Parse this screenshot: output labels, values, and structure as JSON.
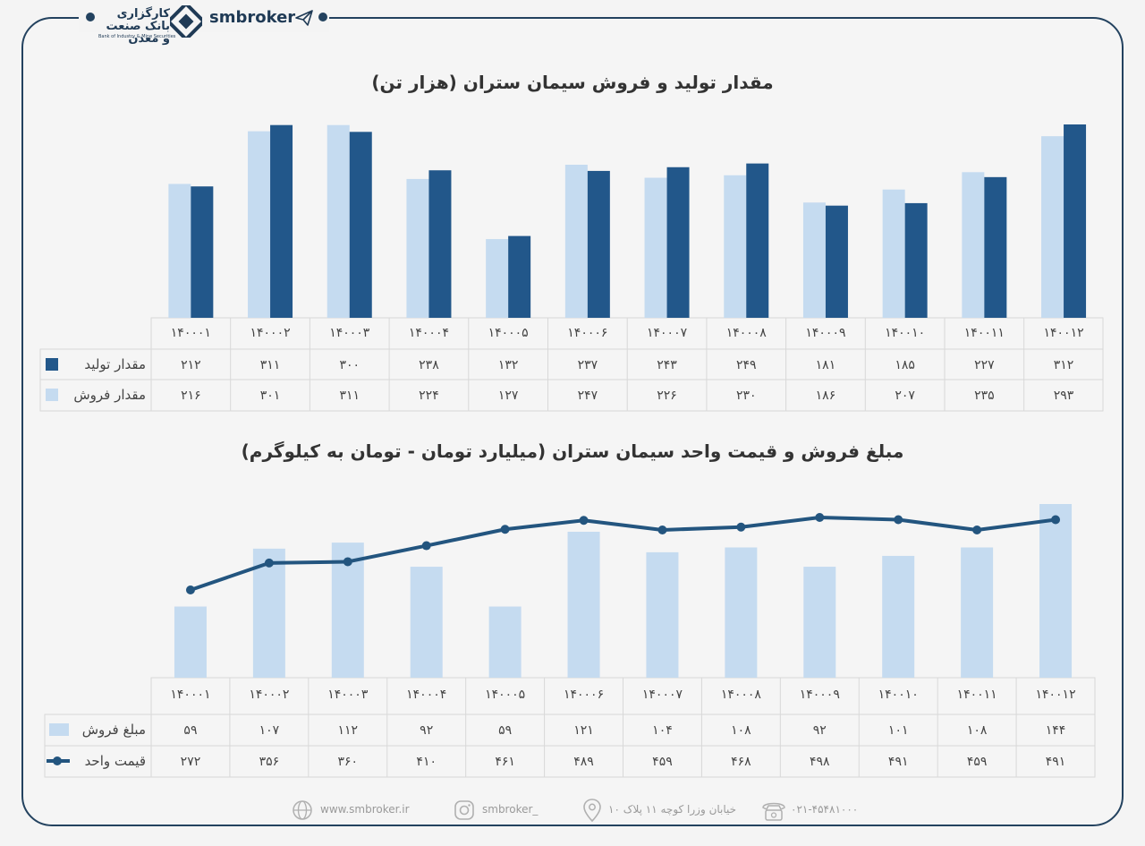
{
  "brand": {
    "name": "smbroker",
    "logo_text": "کارگزاری بانک صنعت و معدن",
    "logo_sub": "Bank of Industry & Mine Securities"
  },
  "footer": {
    "website": "www.smbroker.ir",
    "instagram": "smbroker_",
    "address": "خیابان وزرا کوچه ۱۱ پلاک ۱۰",
    "phone": "۰۲۱-۴۵۴۸۱۰۰۰"
  },
  "chart_data": [
    {
      "type": "bar",
      "title": "مقدار تولید و فروش سیمان ستران (هزار تن)",
      "categories": [
        "۱۴۰۰۰۱",
        "۱۴۰۰۰۲",
        "۱۴۰۰۰۳",
        "۱۴۰۰۰۴",
        "۱۴۰۰۰۵",
        "۱۴۰۰۰۶",
        "۱۴۰۰۰۷",
        "۱۴۰۰۰۸",
        "۱۴۰۰۰۹",
        "۱۴۰۰۱۰",
        "۱۴۰۰۱۱",
        "۱۴۰۰۱۲"
      ],
      "series": [
        {
          "name": "مقدار تولید",
          "color": "#22578a",
          "values": [
            212,
            311,
            300,
            238,
            132,
            237,
            243,
            249,
            181,
            185,
            227,
            312
          ],
          "labels": [
            "۲۱۲",
            "۳۱۱",
            "۳۰۰",
            "۲۳۸",
            "۱۳۲",
            "۲۳۷",
            "۲۴۳",
            "۲۴۹",
            "۱۸۱",
            "۱۸۵",
            "۲۲۷",
            "۳۱۲"
          ]
        },
        {
          "name": "مقدار فروش",
          "color": "#c5dbf0",
          "values": [
            216,
            301,
            311,
            224,
            127,
            247,
            226,
            230,
            186,
            207,
            235,
            293
          ],
          "labels": [
            "۲۱۶",
            "۳۰۱",
            "۳۱۱",
            "۲۲۴",
            "۱۲۷",
            "۲۴۷",
            "۲۲۶",
            "۲۳۰",
            "۱۸۶",
            "۲۰۷",
            "۲۳۵",
            "۲۹۳"
          ]
        }
      ],
      "ylim": [
        0,
        312
      ]
    },
    {
      "type": "bar+line",
      "title": "مبلغ فروش و قیمت واحد سیمان ستران (میلیارد تومان - تومان به کیلوگرم)",
      "categories": [
        "۱۴۰۰۰۱",
        "۱۴۰۰۰۲",
        "۱۴۰۰۰۳",
        "۱۴۰۰۰۴",
        "۱۴۰۰۰۵",
        "۱۴۰۰۰۶",
        "۱۴۰۰۰۷",
        "۱۴۰۰۰۸",
        "۱۴۰۰۰۹",
        "۱۴۰۰۱۰",
        "۱۴۰۰۱۱",
        "۱۴۰۰۱۲"
      ],
      "series": [
        {
          "name": "مبلغ فروش",
          "kind": "bar",
          "color": "#c5dbf0",
          "values": [
            59,
            107,
            112,
            92,
            59,
            121,
            104,
            108,
            92,
            101,
            108,
            144
          ],
          "labels": [
            "۵۹",
            "۱۰۷",
            "۱۱۲",
            "۹۲",
            "۵۹",
            "۱۲۱",
            "۱۰۴",
            "۱۰۸",
            "۹۲",
            "۱۰۱",
            "۱۰۸",
            "۱۴۴"
          ]
        },
        {
          "name": "قیمت واحد",
          "kind": "line",
          "color": "#23557f",
          "values": [
            272,
            356,
            360,
            410,
            461,
            489,
            459,
            468,
            498,
            491,
            459,
            491
          ],
          "labels": [
            "۲۷۲",
            "۳۵۶",
            "۳۶۰",
            "۴۱۰",
            "۴۶۱",
            "۴۸۹",
            "۴۵۹",
            "۴۶۸",
            "۴۹۸",
            "۴۹۱",
            "۴۵۹",
            "۴۹۱"
          ]
        }
      ]
    }
  ]
}
